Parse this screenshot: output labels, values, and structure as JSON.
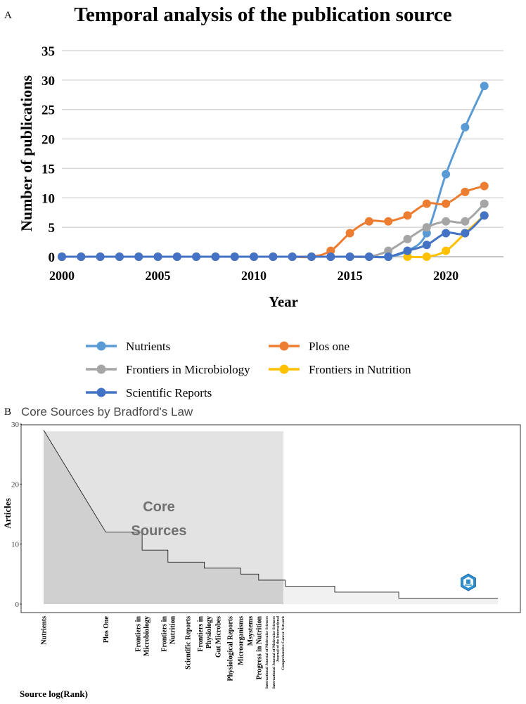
{
  "panel_a_letter": "A",
  "panel_b_letter": "B",
  "chart_data": [
    {
      "type": "line",
      "title": "Temporal analysis of the publication source",
      "xlabel": "Year",
      "ylabel": "Number of publications",
      "xlim": [
        2000,
        2023
      ],
      "ylim": [
        0,
        35
      ],
      "x_ticks": [
        2000,
        2005,
        2010,
        2015,
        2020
      ],
      "y_ticks": [
        0,
        5,
        10,
        15,
        20,
        25,
        30,
        35
      ],
      "grid": true,
      "legend_position": "bottom",
      "x": [
        2000,
        2001,
        2002,
        2003,
        2004,
        2005,
        2006,
        2007,
        2008,
        2009,
        2010,
        2011,
        2012,
        2013,
        2014,
        2015,
        2016,
        2017,
        2018,
        2019,
        2020,
        2021,
        2022
      ],
      "series": [
        {
          "name": "Nutrients",
          "color": "#5B9BD5",
          "values": [
            0,
            0,
            0,
            0,
            0,
            0,
            0,
            0,
            0,
            0,
            0,
            0,
            0,
            0,
            0,
            0,
            0,
            0,
            1,
            4,
            14,
            22,
            29
          ]
        },
        {
          "name": "Plos one",
          "color": "#ED7D31",
          "values": [
            0,
            0,
            0,
            0,
            0,
            0,
            0,
            0,
            0,
            0,
            0,
            0,
            0,
            0,
            1,
            4,
            6,
            6,
            7,
            9,
            9,
            11,
            12
          ]
        },
        {
          "name": "Frontiers in Microbiology",
          "color": "#A5A5A5",
          "values": [
            0,
            0,
            0,
            0,
            0,
            0,
            0,
            0,
            0,
            0,
            0,
            0,
            0,
            0,
            0,
            0,
            0,
            1,
            3,
            5,
            6,
            6,
            9
          ]
        },
        {
          "name": "Frontiers in Nutrition",
          "color": "#FFC000",
          "values": [
            null,
            null,
            null,
            null,
            null,
            null,
            null,
            null,
            null,
            null,
            null,
            null,
            null,
            null,
            null,
            null,
            null,
            null,
            0,
            0,
            1,
            4,
            7
          ]
        },
        {
          "name": "Scientific Reports",
          "color": "#4472C4",
          "values": [
            0,
            0,
            0,
            0,
            0,
            0,
            0,
            0,
            0,
            0,
            0,
            0,
            0,
            0,
            0,
            0,
            0,
            0,
            1,
            2,
            4,
            4,
            7
          ]
        }
      ]
    },
    {
      "type": "area",
      "title": "Core Sources by Bradford's Law",
      "xlabel": "Source log(Rank)",
      "ylabel": "Articles",
      "ylim": [
        0,
        30
      ],
      "y_ticks": [
        0,
        10,
        20,
        30
      ],
      "core_label_line1": "Core",
      "core_label_line2": "Sources",
      "core_sources_count": 14,
      "sources": [
        {
          "name": "Nutrients",
          "articles": 29
        },
        {
          "name": "Plos One",
          "articles": 12
        },
        {
          "name": "Frontiers in Microbiology",
          "articles": 9
        },
        {
          "name": "Frontiers in Nutrition",
          "articles": 7
        },
        {
          "name": "Scientific Reports",
          "articles": 7
        },
        {
          "name": "Frontiers in Physiology",
          "articles": 6
        },
        {
          "name": "Gut Microbes",
          "articles": 6
        },
        {
          "name": "Physiological Reports",
          "articles": 6
        },
        {
          "name": "Microorganisms",
          "articles": 5
        },
        {
          "name": "Msystems",
          "articles": 5
        },
        {
          "name": "Progress in Nutrition",
          "articles": 4
        },
        {
          "name": "International Journal of Molecular Sciences",
          "articles": 4
        },
        {
          "name": "International Journal of Molecular Sciences",
          "articles": 4
        },
        {
          "name": "Journal of the International Comprehensive Cancer Network",
          "articles": 4
        }
      ],
      "label_lines": [
        [
          "Nutrients"
        ],
        [
          "Plos One"
        ],
        [
          "Frontiers in",
          "Microbiology"
        ],
        [
          "Frontiers in",
          "Nutrition"
        ],
        [
          "Scientific Reports"
        ],
        [
          "Frontiers in",
          "Physiology"
        ],
        [
          "Gut Microbes"
        ],
        [
          "Physiological Reports"
        ],
        [
          "Microorganisms"
        ],
        [
          "Msystems"
        ],
        [
          "Progress in Nutrition"
        ],
        [
          "International Journal of Molecular Sciences"
        ],
        [
          "International Journal of Molecular Sciences"
        ],
        [
          "Journal of the International",
          "Comprehensive Cancer Network"
        ]
      ],
      "tail_steps": [
        {
          "log_rank": 1.17,
          "articles": 3
        },
        {
          "log_rank": 1.41,
          "articles": 2
        },
        {
          "log_rank": 1.72,
          "articles": 1
        },
        {
          "log_rank": 2.2,
          "articles": 1
        }
      ]
    }
  ]
}
